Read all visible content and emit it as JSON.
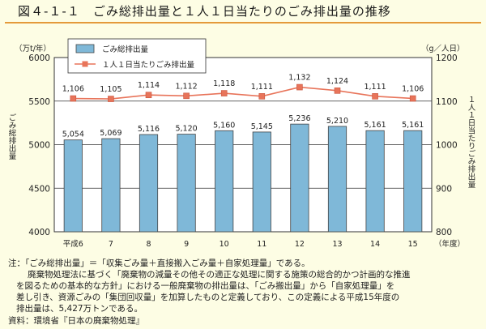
{
  "figure_title": "図４-１-１　ごみ総排出量と１人１日当たりのごみ排出量の推移",
  "chart_data": {
    "type": "bar+line",
    "categories": [
      "平成6",
      "7",
      "8",
      "9",
      "10",
      "11",
      "12",
      "13",
      "14",
      "15"
    ],
    "x_unit": "（年度）",
    "left_axis": {
      "unit": "（万t/年）",
      "label": "ごみ総排出量",
      "ticks": [
        4000,
        4500,
        5000,
        5500,
        6000
      ],
      "ylim": [
        4000,
        6000
      ]
    },
    "right_axis": {
      "unit": "（g／人日）",
      "label": "１人１日当たりごみ排出量",
      "ticks": [
        800,
        900,
        1000,
        1100,
        1200
      ],
      "ylim": [
        800,
        1200
      ]
    },
    "series": [
      {
        "name": "ごみ総排出量",
        "kind": "bar",
        "axis": "left",
        "color": "#7fb8d8",
        "values": [
          5054,
          5069,
          5116,
          5120,
          5160,
          5145,
          5236,
          5210,
          5161,
          5161
        ],
        "labels": [
          "5,054",
          "5,069",
          "5,116",
          "5,120",
          "5,160",
          "5,145",
          "5,236",
          "5,210",
          "5,161",
          "5,161"
        ]
      },
      {
        "name": "１人１日当たりごみ排出量",
        "kind": "line",
        "axis": "right",
        "color": "#e8745a",
        "values": [
          1106,
          1105,
          1114,
          1112,
          1118,
          1111,
          1132,
          1124,
          1111,
          1106
        ],
        "labels": [
          "1,106",
          "1,105",
          "1,114",
          "1,112",
          "1,118",
          "1,111",
          "1,132",
          "1,124",
          "1,111",
          "1,106"
        ]
      }
    ],
    "legend_position": "top-left"
  },
  "notes": {
    "line1": "注：「ごみ総排出量」＝「収集ごみ量＋直接搬入ごみ量＋自家処理量」である。",
    "line2": "廃棄物処理法に基づく「廃棄物の減量その他その適正な処理に関する施策の総合的かつ計画的な推進",
    "line3": "を図るための基本的な方針」における一般廃棄物の排出量は、「ごみ搬出量」から「自家処理量」を",
    "line4": "差し引き、資源ごみの「集団回収量」を加算したものと定義しており、この定義による平成15年度の",
    "line5": "排出量は、5,427万トンである。",
    "source": "資料：環境省『日本の廃棄物処理』"
  }
}
